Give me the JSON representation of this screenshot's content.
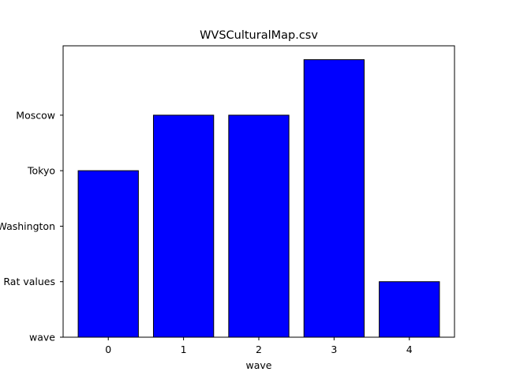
{
  "chart_data": {
    "type": "bar",
    "title": "WVSCulturalMap.csv",
    "xlabel": "wave",
    "ylabel": "",
    "categories": [
      "0",
      "1",
      "2",
      "3",
      "4"
    ],
    "values": [
      3,
      4,
      4,
      5,
      1
    ],
    "y_tick_labels": [
      "wave",
      "Rat values",
      "Washington",
      "Tokyo",
      "Moscow"
    ],
    "y_tick_values": [
      0,
      1,
      2,
      3,
      4
    ],
    "ylim": [
      0,
      5.25
    ],
    "bar_color": "#0000ff",
    "edge_color": "#000000",
    "grid": false
  }
}
